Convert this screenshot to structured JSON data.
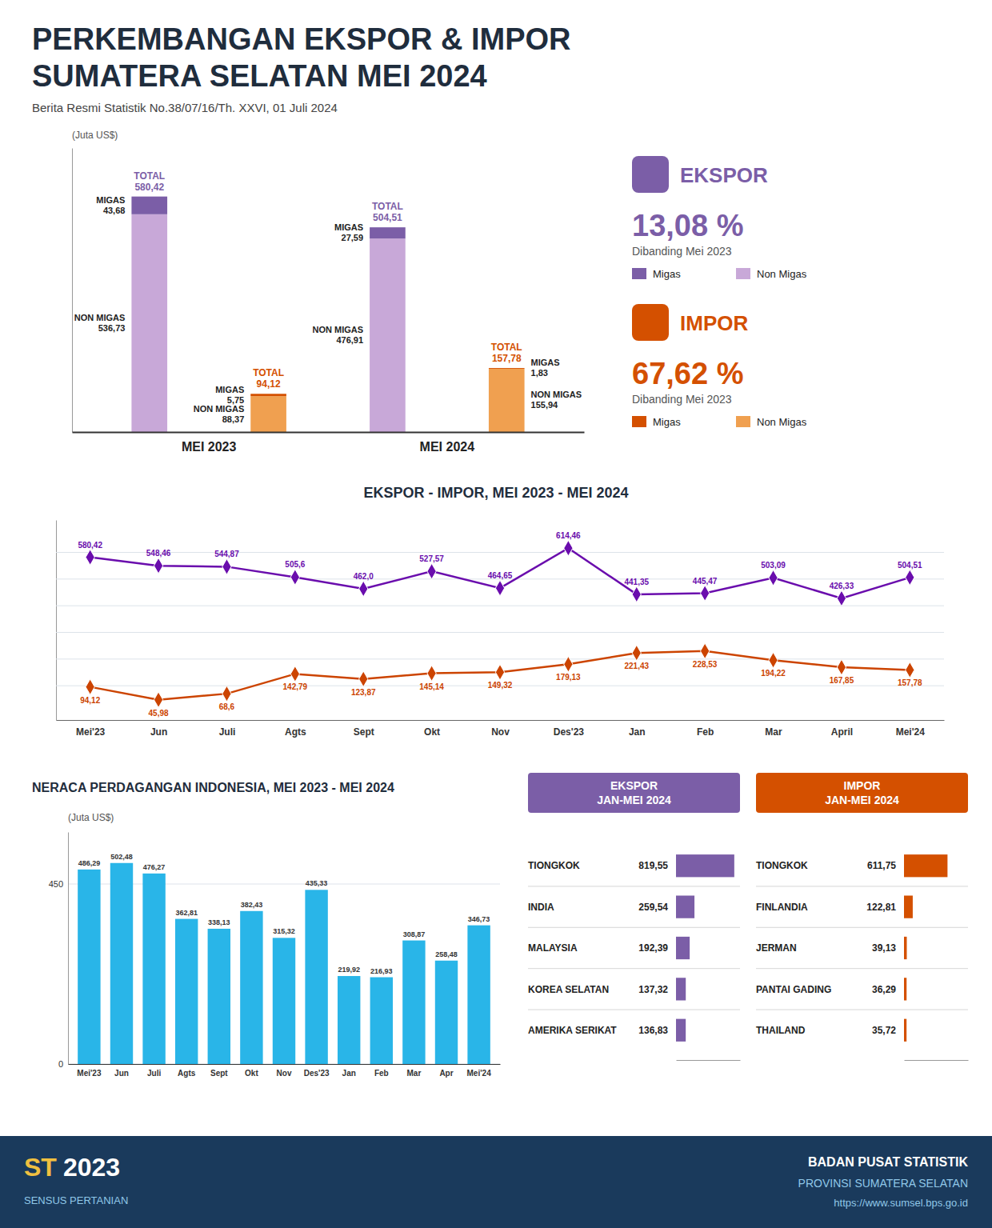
{
  "chart_data": [
    {
      "type": "bar",
      "stacked": true,
      "title": "PERKEMBANGAN EKSPOR & IMPOR\nSUMATERA SELATAN MEI 2024",
      "subtitle": "Berita Resmi Statistik No.38/07/16/Th. XXVI, 01 Juli 2024",
      "ylabel": "(Juta US$)",
      "categories": [
        "MEI 2023",
        null,
        "MEI 2024",
        null
      ],
      "series": [
        {
          "name": "NON MIGAS",
          "colors": [
            "#c8a8d8",
            "#f0a050",
            "#c8a8d8",
            "#f0a050"
          ],
          "values": [
            536.73,
            88.37,
            476.91,
            155.94
          ],
          "value_labels": [
            "536,73",
            "88,37",
            "476,91",
            "155,94"
          ]
        },
        {
          "name": "MIGAS",
          "colors": [
            "#7b5ea7",
            "#d45000",
            "#7b5ea7",
            "#d45000"
          ],
          "values": [
            43.68,
            5.75,
            27.59,
            1.83
          ],
          "value_labels": [
            "43,68",
            "5,75",
            "27,59",
            "1,83"
          ]
        }
      ],
      "total_name": "TOTAL",
      "totals": [
        580.42,
        94.12,
        504.51,
        157.78
      ],
      "total_labels": [
        "580,42",
        "94,12",
        "504,51",
        "157,78"
      ],
      "ylim": [
        0,
        700
      ],
      "data_labels": true,
      "tick_labels": "x",
      "panels": [
        {
          "name": "EKSPOR",
          "color": "#7b5ea7",
          "change": "13,08 %",
          "note": "Dibanding Mei 2023",
          "entries": [
            {
              "name": "Migas",
              "color": "#7b5ea7"
            },
            {
              "name": "Non Migas",
              "color": "#c8a8d8"
            }
          ]
        },
        {
          "name": "IMPOR",
          "color": "#d45000",
          "change": "67,62 %",
          "note": "Dibanding Mei 2023",
          "entries": [
            {
              "name": "Migas",
              "color": "#d45000"
            },
            {
              "name": "Non Migas",
              "color": "#f0a050"
            }
          ]
        }
      ],
      "annotations": [
        "ST",
        "2023",
        "SENSUS PERTANIAN",
        "BADAN PUSAT STATISTIK",
        "PROVINSI SUMATERA SELATAN",
        "https://www.sumsel.bps.go.id"
      ]
    },
    {
      "type": "line",
      "title": "EKSPOR - IMPOR, MEI 2023 - MEI 2024",
      "categories": [
        "Mei'23",
        "Jun",
        "Juli",
        "Agts",
        "Sept",
        "Okt",
        "Nov",
        "Des'23",
        "Jan",
        "Feb",
        "Mar",
        "April",
        "Mei'24"
      ],
      "series": [
        {
          "color": "#6a0dad",
          "marker": "diamond",
          "values": [
            580.42,
            548.46,
            544.87,
            505.6,
            462.0,
            527.57,
            464.65,
            614.46,
            441.35,
            445.47,
            503.09,
            426.33,
            504.51
          ],
          "value_labels": [
            "580,42",
            "548,46",
            "544,87",
            "505,6",
            "462,0",
            "527,57",
            "464,65",
            "614,46",
            "441,35",
            "445,47",
            "503,09",
            "426,33",
            "504,51"
          ]
        },
        {
          "color": "#cc4400",
          "marker": "diamond",
          "values": [
            94.12,
            45.98,
            68.6,
            142.79,
            123.87,
            145.14,
            149.32,
            179.13,
            221.43,
            228.53,
            194.22,
            167.85,
            157.78
          ],
          "value_labels": [
            "94,12",
            "45,98",
            "68,6",
            "142,79",
            "123,87",
            "145,14",
            "149,32",
            "179,13",
            "221,43",
            "228,53",
            "194,22",
            "167,85",
            "157,78"
          ]
        }
      ],
      "ylim": [
        -30,
        720
      ],
      "yticks": [
        100,
        200,
        300,
        400,
        500,
        600
      ],
      "grid": true,
      "tick_labels": "x",
      "data_labels": true
    },
    {
      "type": "bar",
      "title": "NERACA PERDAGANGAN INDONESIA, MEI 2023 - MEI 2024",
      "ylabel": "(Juta US$)",
      "categories": [
        "Mei'23",
        "Jun",
        "Juli",
        "Agts",
        "Sept",
        "Okt",
        "Nov",
        "Des'23",
        "Jan",
        "Feb",
        "Mar",
        "Apr",
        "Mei'24"
      ],
      "values": [
        486.29,
        502.48,
        476.27,
        362.81,
        338.13,
        382.43,
        315.32,
        435.33,
        219.92,
        216.93,
        308.87,
        258.48,
        346.73
      ],
      "value_labels": [
        "486,29",
        "502,48",
        "476,27",
        "362,81",
        "338,13",
        "382,43",
        "315,32",
        "435,33",
        "219,92",
        "216,93",
        "308,87",
        "258,48",
        "346,73"
      ],
      "color": "#29b5e8",
      "ylim": [
        0,
        580
      ],
      "yticks": [
        0,
        450
      ],
      "grid": true,
      "data_labels": true
    },
    {
      "type": "bar",
      "orientation": "horizontal",
      "title": "EKSPOR\nJAN-MEI 2024",
      "categories": [
        "TIONGKOK",
        "INDIA",
        "MALAYSIA",
        "KOREA SELATAN",
        "AMERIKA SERIKAT"
      ],
      "values": [
        819.55,
        259.54,
        192.39,
        137.32,
        136.83
      ],
      "value_labels": [
        "819,55",
        "259,54",
        "192,39",
        "137,32",
        "136,83"
      ],
      "color": "#7b5ea7",
      "xlim": [
        0,
        900
      ],
      "data_labels": true,
      "tick_labels": "y"
    },
    {
      "type": "bar",
      "orientation": "horizontal",
      "title": "IMPOR\nJAN-MEI 2024",
      "categories": [
        "TIONGKOK",
        "FINLANDIA",
        "JERMAN",
        "PANTAI GADING",
        "THAILAND"
      ],
      "values": [
        611.75,
        122.81,
        39.13,
        36.29,
        35.72
      ],
      "value_labels": [
        "611,75",
        "122,81",
        "39,13",
        "36,29",
        "35,72"
      ],
      "color": "#d45000",
      "xlim": [
        0,
        900
      ],
      "data_labels": true,
      "tick_labels": "y"
    }
  ]
}
